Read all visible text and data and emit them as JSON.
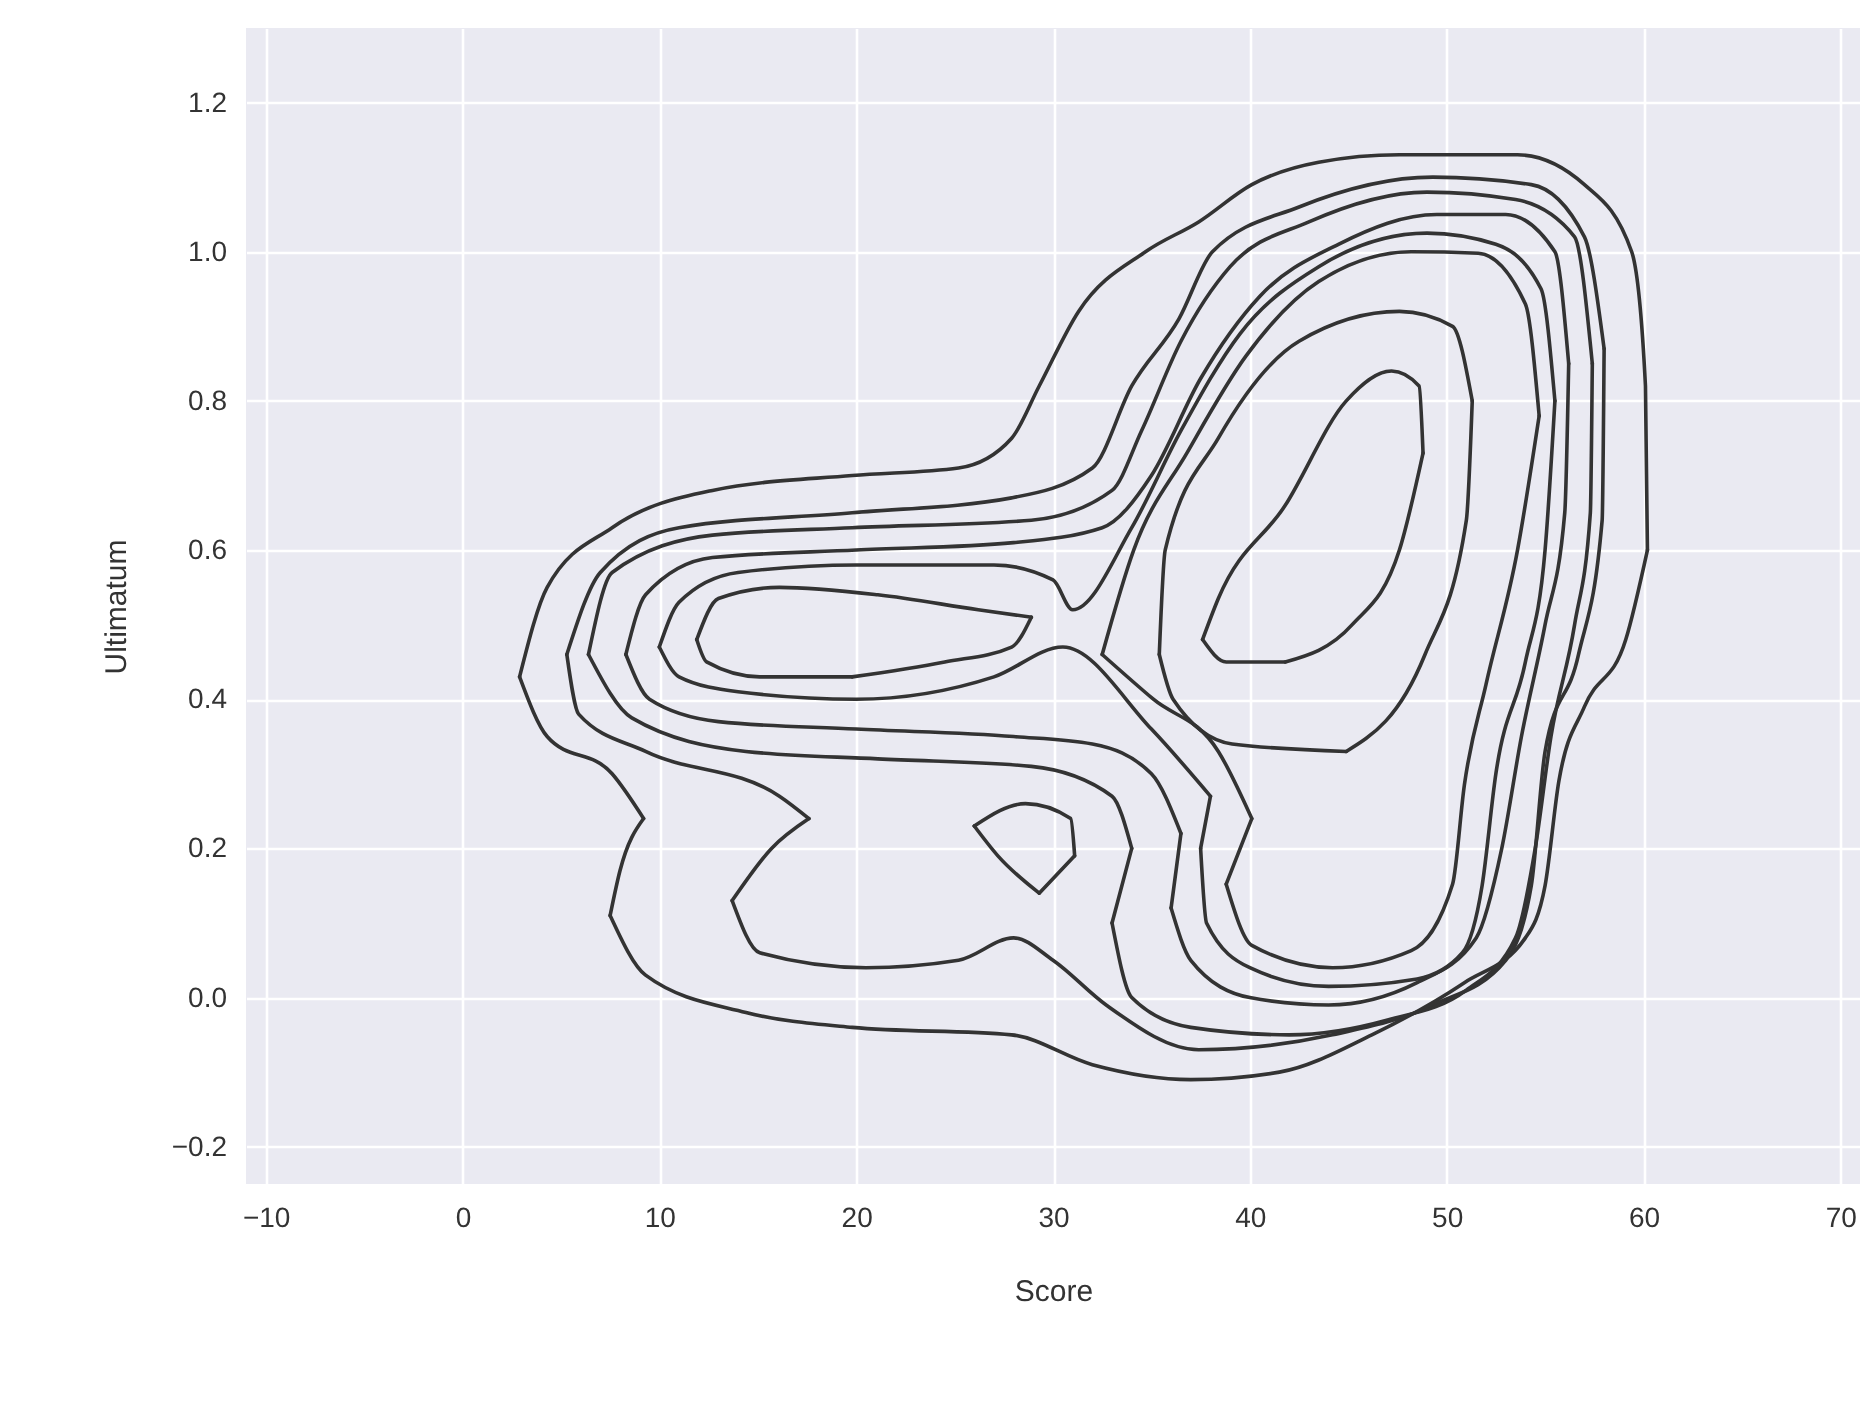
{
  "chart_data": {
    "type": "line",
    "xlabel": "Score",
    "ylabel": "Ultimatum",
    "xlim": [
      -11,
      71
    ],
    "ylim": [
      -0.25,
      1.3
    ],
    "xticks": [
      {
        "value": -10,
        "label": "−10"
      },
      0,
      10,
      20,
      30,
      40,
      50,
      60,
      70
    ],
    "yticks": [
      {
        "value": -0.2,
        "label": "−0.2"
      },
      {
        "value": 0,
        "label": "0.0"
      },
      0.2,
      0.4,
      0.6,
      0.8,
      {
        "value": 1,
        "label": "1.0"
      },
      1.2
    ],
    "grid": true,
    "series": [
      {
        "type": "line",
        "color": "#333333",
        "x": [
          2.9,
          4.3,
          7.6,
          12.7,
          19.8,
          25.2,
          27.9,
          29.3,
          31.3,
          34.7,
          37.4,
          40.1,
          43.5,
          47.6,
          53.6,
          57.0,
          59.4,
          60.1,
          60.2
        ],
        "values": [
          0.43,
          0.55,
          0.63,
          0.68,
          0.7,
          0.71,
          0.75,
          0.82,
          0.92,
          1.0,
          1.04,
          1.09,
          1.12,
          1.13,
          1.13,
          1.09,
          1.0,
          0.82,
          0.6
        ]
      },
      {
        "type": "line",
        "color": "#333333",
        "x": [
          7.5,
          9.3,
          14.4,
          19.8,
          27.9,
          32.0,
          37.0,
          41.5,
          46.2,
          50.9,
          54.0,
          55.0,
          55.7,
          57.0,
          59.1,
          60.2
        ],
        "values": [
          0.11,
          0.03,
          -0.02,
          -0.04,
          -0.05,
          -0.09,
          -0.11,
          -0.1,
          -0.05,
          0.02,
          0.08,
          0.15,
          0.29,
          0.39,
          0.48,
          0.6
        ]
      },
      {
        "type": "line",
        "color": "#333333",
        "x": [
          7.5,
          8.0,
          9.2
        ],
        "values": [
          0.11,
          0.17,
          0.24
        ]
      },
      {
        "type": "line",
        "color": "#333333",
        "x": [
          2.9,
          4.3,
          7.6,
          9.2
        ],
        "values": [
          0.43,
          0.35,
          0.3,
          0.24
        ]
      },
      {
        "type": "line",
        "color": "#333333",
        "x": [
          5.3,
          7.0,
          11.0,
          19.8,
          27.9,
          32.0,
          34.0,
          36.4,
          38.1,
          42.5,
          49.3,
          54.3,
          57.0,
          58.0
        ],
        "values": [
          0.46,
          0.57,
          0.63,
          0.65,
          0.67,
          0.71,
          0.82,
          0.91,
          1.0,
          1.06,
          1.1,
          1.09,
          1.02,
          0.87
        ]
      },
      {
        "type": "line",
        "color": "#333333",
        "x": [
          13.7,
          15.1,
          20.5,
          25.2,
          28.0,
          30.0,
          32.7,
          37.4,
          44.2,
          49.3,
          53.0,
          54.3,
          55.0,
          56.7,
          57.9,
          58.0
        ],
        "values": [
          0.13,
          0.06,
          0.04,
          0.05,
          0.08,
          0.05,
          -0.01,
          -0.07,
          -0.05,
          -0.01,
          0.05,
          0.15,
          0.33,
          0.46,
          0.64,
          0.87
        ]
      },
      {
        "type": "line",
        "color": "#333333",
        "x": [
          13.7,
          15.7,
          17.6
        ],
        "values": [
          0.13,
          0.2,
          0.24
        ]
      },
      {
        "type": "line",
        "color": "#333333",
        "x": [
          5.3,
          5.9,
          9.3,
          16.1,
          17.6
        ],
        "values": [
          0.46,
          0.38,
          0.33,
          0.27,
          0.24
        ]
      },
      {
        "type": "line",
        "color": "#333333",
        "x": [
          26.0,
          28.6,
          30.9,
          31.1
        ],
        "values": [
          0.23,
          0.26,
          0.24,
          0.19
        ]
      },
      {
        "type": "line",
        "color": "#333333",
        "x": [
          26.0,
          27.2,
          29.3
        ],
        "values": [
          0.23,
          0.19,
          0.14
        ]
      },
      {
        "type": "line",
        "color": "#333333",
        "x": [
          29.3,
          31.1
        ],
        "values": [
          0.14,
          0.19
        ]
      },
      {
        "type": "line",
        "color": "#333333",
        "x": [
          6.4,
          7.6,
          12.7,
          19.8,
          28.9,
          33.0,
          34.5,
          36.5,
          39.0,
          43.0,
          49.0,
          53.5,
          56.5,
          57.4
        ],
        "values": [
          0.46,
          0.57,
          0.62,
          0.63,
          0.64,
          0.68,
          0.76,
          0.88,
          0.98,
          1.04,
          1.08,
          1.07,
          1.02,
          0.85
        ]
      },
      {
        "type": "line",
        "color": "#333333",
        "x": [
          33.0,
          34.0,
          37.0,
          42.0,
          47.0,
          51.0,
          53.5,
          54.5,
          55.3,
          56.5,
          57.3,
          57.4
        ],
        "values": [
          0.1,
          0.0,
          -0.04,
          -0.05,
          -0.03,
          0.01,
          0.08,
          0.2,
          0.35,
          0.5,
          0.65,
          0.85
        ]
      },
      {
        "type": "line",
        "color": "#333333",
        "x": [
          33.0,
          34.0
        ],
        "values": [
          0.1,
          0.2
        ]
      },
      {
        "type": "line",
        "color": "#333333",
        "x": [
          6.4,
          8.6,
          14.4,
          21.1,
          28.9,
          33.0,
          34.0
        ],
        "values": [
          0.46,
          0.375,
          0.33,
          0.32,
          0.31,
          0.27,
          0.2
        ]
      },
      {
        "type": "line",
        "color": "#333333",
        "x": [
          8.3,
          9.3,
          12.7,
          20.0,
          28.0,
          32.5,
          35.0,
          37.5,
          40.5,
          44.5,
          49.5,
          53.0,
          55.5,
          56.2
        ],
        "values": [
          0.46,
          0.54,
          0.59,
          0.6,
          0.61,
          0.63,
          0.7,
          0.83,
          0.94,
          1.01,
          1.05,
          1.05,
          1.0,
          0.85
        ]
      },
      {
        "type": "line",
        "color": "#333333",
        "x": [
          36.0,
          37.0,
          40.0,
          44.0,
          48.5,
          51.5,
          52.8,
          53.8,
          55.0,
          56.0,
          56.2
        ],
        "values": [
          0.12,
          0.05,
          0.0,
          -0.01,
          0.02,
          0.08,
          0.2,
          0.35,
          0.5,
          0.65,
          0.85
        ]
      },
      {
        "type": "line",
        "color": "#333333",
        "x": [
          36.0,
          36.5
        ],
        "values": [
          0.12,
          0.22
        ]
      },
      {
        "type": "line",
        "color": "#333333",
        "x": [
          8.3,
          9.5,
          13.0,
          20.0,
          28.0,
          32.0,
          35.0,
          36.5
        ],
        "values": [
          0.46,
          0.4,
          0.37,
          0.36,
          0.35,
          0.34,
          0.3,
          0.22
        ]
      },
      {
        "type": "line",
        "color": "#333333",
        "x": [
          10.0,
          11.0,
          14.0,
          20.0,
          27.0,
          30.0,
          31.0,
          34.0,
          36.5,
          39.5,
          43.5,
          49.0,
          52.5,
          54.8,
          55.5
        ],
        "values": [
          0.47,
          0.53,
          0.57,
          0.58,
          0.58,
          0.56,
          0.52,
          0.63,
          0.76,
          0.89,
          0.98,
          1.025,
          1.01,
          0.95,
          0.8
        ]
      },
      {
        "type": "line",
        "color": "#333333",
        "x": [
          37.5,
          37.8,
          40.0,
          44.0,
          48.5,
          50.8,
          51.8,
          52.5,
          54.0,
          55.0,
          55.5
        ],
        "values": [
          0.2,
          0.1,
          0.04,
          0.015,
          0.025,
          0.06,
          0.15,
          0.3,
          0.45,
          0.6,
          0.8
        ]
      },
      {
        "type": "line",
        "color": "#333333",
        "x": [
          37.5,
          38.0
        ],
        "values": [
          0.2,
          0.27
        ]
      },
      {
        "type": "line",
        "color": "#333333",
        "x": [
          10.0,
          11.0,
          14.0,
          20.0,
          27.0,
          30.5,
          35.0,
          38.0
        ],
        "values": [
          0.47,
          0.43,
          0.41,
          0.4,
          0.43,
          0.47,
          0.36,
          0.27
        ]
      },
      {
        "type": "line",
        "color": "#333333",
        "x": [
          11.9,
          13.0,
          16.1,
          21.1,
          26.2,
          28.9
        ],
        "values": [
          0.48,
          0.535,
          0.55,
          0.54,
          0.52,
          0.51
        ]
      },
      {
        "type": "line",
        "color": "#333333",
        "x": [
          11.9,
          12.4,
          15.1,
          19.8
        ],
        "values": [
          0.48,
          0.45,
          0.43,
          0.43
        ]
      },
      {
        "type": "line",
        "color": "#333333",
        "x": [
          19.8,
          24.5,
          27.9,
          28.9
        ],
        "values": [
          0.43,
          0.45,
          0.47,
          0.51
        ]
      },
      {
        "type": "line",
        "color": "#333333",
        "x": [
          32.5,
          34.1,
          36.8,
          39.8,
          43.5,
          48.2,
          51.6,
          54.0,
          54.7
        ],
        "values": [
          0.46,
          0.6,
          0.73,
          0.86,
          0.96,
          1.0,
          0.998,
          0.93,
          0.78
        ]
      },
      {
        "type": "line",
        "color": "#333333",
        "x": [
          38.8,
          40.1,
          44.2,
          48.2,
          50.3,
          50.9,
          52.0,
          53.6,
          54.7
        ],
        "values": [
          0.152,
          0.07,
          0.04,
          0.063,
          0.152,
          0.285,
          0.42,
          0.6,
          0.78
        ]
      },
      {
        "type": "line",
        "color": "#333333",
        "x": [
          38.8,
          40.1
        ],
        "values": [
          0.152,
          0.24
        ]
      },
      {
        "type": "line",
        "color": "#333333",
        "x": [
          32.5,
          35.1,
          38.4,
          40.1
        ],
        "values": [
          0.46,
          0.4,
          0.33,
          0.24
        ]
      },
      {
        "type": "line",
        "color": "#333333",
        "x": [
          35.4,
          35.7,
          38.4,
          42.5,
          47.6,
          50.3,
          51.3
        ],
        "values": [
          0.46,
          0.6,
          0.75,
          0.88,
          0.92,
          0.9,
          0.8
        ]
      },
      {
        "type": "line",
        "color": "#333333",
        "x": [
          35.4,
          36.1,
          39.1,
          44.9
        ],
        "values": [
          0.46,
          0.4,
          0.34,
          0.33
        ]
      },
      {
        "type": "line",
        "color": "#333333",
        "x": [
          44.9,
          48.9,
          51.0,
          51.3
        ],
        "values": [
          0.33,
          0.46,
          0.64,
          0.8
        ]
      },
      {
        "type": "line",
        "color": "#333333",
        "x": [
          37.6,
          38.4,
          41.8,
          44.9,
          47.2,
          48.6,
          48.8
        ],
        "values": [
          0.48,
          0.535,
          0.66,
          0.8,
          0.84,
          0.82,
          0.73
        ]
      },
      {
        "type": "line",
        "color": "#333333",
        "x": [
          37.6,
          38.8,
          41.8
        ],
        "values": [
          0.48,
          0.45,
          0.45
        ]
      },
      {
        "type": "line",
        "color": "#333333",
        "x": [
          41.8,
          45.2,
          47.6,
          48.8
        ],
        "values": [
          0.45,
          0.5,
          0.6,
          0.73
        ]
      }
    ]
  }
}
